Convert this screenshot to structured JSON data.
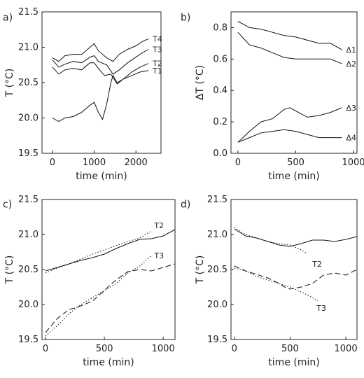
{
  "chart_data": [
    {
      "id": "a",
      "panel_label": "a)",
      "type": "line",
      "xlabel": "time (min)",
      "ylabel": "T (°C)",
      "xlim": [
        -250,
        2600
      ],
      "ylim": [
        19.5,
        21.5
      ],
      "xticks": [
        0,
        1000,
        2000
      ],
      "xtick_labels": [
        "0",
        "1000",
        "2000"
      ],
      "yticks": [
        19.5,
        20.0,
        20.5,
        21.0,
        21.5
      ],
      "ytick_labels": [
        "19.5",
        "20.0",
        "20.5",
        "21.0",
        "21.5"
      ],
      "series": [
        {
          "name": "T4",
          "style": "solid",
          "x": [
            0,
            150,
            300,
            500,
            700,
            900,
            1000,
            1100,
            1300,
            1450,
            1600,
            1800,
            2000,
            2150,
            2300
          ],
          "y": [
            20.85,
            20.8,
            20.88,
            20.9,
            20.9,
            21.0,
            21.05,
            20.95,
            20.85,
            20.8,
            20.9,
            20.97,
            21.02,
            21.08,
            21.12
          ]
        },
        {
          "name": "T3",
          "style": "solid",
          "x": [
            0,
            150,
            300,
            500,
            700,
            900,
            1000,
            1100,
            1300,
            1450,
            1600,
            1800,
            2000,
            2150,
            2300
          ],
          "y": [
            20.82,
            20.72,
            20.76,
            20.8,
            20.78,
            20.86,
            20.88,
            20.8,
            20.75,
            20.62,
            20.68,
            20.78,
            20.86,
            20.92,
            20.97
          ]
        },
        {
          "name": "T2",
          "style": "solid",
          "x": [
            0,
            150,
            300,
            500,
            700,
            900,
            1000,
            1100,
            1250,
            1400,
            1550,
            1700,
            1900,
            2100,
            2300
          ],
          "y": [
            20.72,
            20.62,
            20.68,
            20.7,
            20.68,
            20.78,
            20.78,
            20.7,
            20.6,
            20.62,
            20.48,
            20.55,
            20.65,
            20.72,
            20.77
          ]
        },
        {
          "name": "T1",
          "style": "solid",
          "x": [
            0,
            150,
            300,
            500,
            700,
            900,
            1000,
            1100,
            1200,
            1300,
            1400,
            1450,
            1550,
            1700,
            1900,
            2100,
            2300
          ],
          "y": [
            20.0,
            19.95,
            20.0,
            20.02,
            20.08,
            20.18,
            20.22,
            20.08,
            19.98,
            20.2,
            20.5,
            20.6,
            20.5,
            20.55,
            20.6,
            20.65,
            20.67
          ]
        }
      ]
    },
    {
      "id": "b",
      "panel_label": "b)",
      "type": "line",
      "xlabel": "time (min)",
      "ylabel": "ΔT (°C)",
      "xlim": [
        -60,
        1030
      ],
      "ylim": [
        0.0,
        0.9
      ],
      "xticks": [
        0,
        500,
        1000
      ],
      "xtick_labels": [
        "0",
        "500",
        "1000"
      ],
      "yticks": [
        0.0,
        0.2,
        0.4,
        0.6,
        0.8
      ],
      "ytick_labels": [
        "0.0",
        "0.2",
        "0.4",
        "0.6",
        "0.8"
      ],
      "series": [
        {
          "name": "Δ1",
          "style": "solid",
          "x": [
            0,
            100,
            200,
            300,
            400,
            500,
            600,
            700,
            800,
            900
          ],
          "y": [
            0.84,
            0.8,
            0.79,
            0.77,
            0.75,
            0.74,
            0.72,
            0.7,
            0.7,
            0.66
          ]
        },
        {
          "name": "Δ2",
          "style": "solid",
          "x": [
            0,
            100,
            200,
            300,
            400,
            500,
            600,
            700,
            800,
            900
          ],
          "y": [
            0.77,
            0.69,
            0.67,
            0.64,
            0.61,
            0.6,
            0.6,
            0.6,
            0.6,
            0.57
          ]
        },
        {
          "name": "Δ3",
          "style": "solid",
          "x": [
            0,
            100,
            200,
            300,
            400,
            450,
            500,
            600,
            700,
            800,
            900
          ],
          "y": [
            0.07,
            0.14,
            0.2,
            0.22,
            0.28,
            0.29,
            0.27,
            0.23,
            0.24,
            0.26,
            0.29
          ]
        },
        {
          "name": "Δ4",
          "style": "solid",
          "x": [
            0,
            100,
            200,
            300,
            400,
            500,
            600,
            700,
            800,
            900
          ],
          "y": [
            0.07,
            0.1,
            0.13,
            0.14,
            0.15,
            0.14,
            0.12,
            0.1,
            0.1,
            0.1
          ]
        }
      ]
    },
    {
      "id": "c",
      "panel_label": "c)",
      "type": "line",
      "xlabel": "time (min)",
      "ylabel": "T (°C)",
      "xlim": [
        -30,
        1100
      ],
      "ylim": [
        19.5,
        21.5
      ],
      "xticks": [
        0,
        500,
        1000
      ],
      "xtick_labels": [
        "0",
        "500",
        "1000"
      ],
      "yticks": [
        19.5,
        20.0,
        20.5,
        21.0,
        21.5
      ],
      "ytick_labels": [
        "19.5",
        "20.0",
        "20.5",
        "21.0",
        "21.5"
      ],
      "series": [
        {
          "name": "T2",
          "style": "solid",
          "x": [
            0,
            100,
            200,
            300,
            400,
            500,
            600,
            700,
            800,
            900,
            1000,
            1100
          ],
          "y": [
            20.48,
            20.53,
            20.58,
            20.63,
            20.67,
            20.72,
            20.8,
            20.87,
            20.93,
            20.94,
            20.98,
            21.07
          ]
        },
        {
          "name": "",
          "style": "dotted",
          "x": [
            0,
            100,
            200,
            300,
            400,
            500,
            600,
            700,
            800,
            900
          ],
          "y": [
            20.45,
            20.52,
            20.58,
            20.65,
            20.72,
            20.78,
            20.84,
            20.9,
            20.95,
            21.05
          ]
        },
        {
          "name": "T3",
          "style": "dashed",
          "x": [
            0,
            100,
            200,
            250,
            300,
            400,
            500,
            550,
            600,
            700,
            800,
            900,
            1000,
            1100
          ],
          "y": [
            19.6,
            19.8,
            19.93,
            19.95,
            19.98,
            20.05,
            20.2,
            20.28,
            20.35,
            20.47,
            20.5,
            20.48,
            20.53,
            20.58
          ]
        },
        {
          "name": "",
          "style": "dotted",
          "x": [
            0,
            100,
            200,
            300,
            400,
            500,
            600,
            700,
            800,
            900
          ],
          "y": [
            19.55,
            19.7,
            19.87,
            20.0,
            20.1,
            20.2,
            20.3,
            20.45,
            20.55,
            20.7
          ]
        }
      ]
    },
    {
      "id": "d",
      "panel_label": "d)",
      "type": "line",
      "xlabel": "time (min)",
      "ylabel": "T (°C)",
      "xlim": [
        -30,
        1100
      ],
      "ylim": [
        19.5,
        21.5
      ],
      "xticks": [
        0,
        500,
        1000
      ],
      "xtick_labels": [
        "0",
        "500",
        "1000"
      ],
      "yticks": [
        19.5,
        20.0,
        20.5,
        21.0,
        21.5
      ],
      "ytick_labels": [
        "19.5",
        "20.0",
        "20.5",
        "21.0",
        "21.5"
      ],
      "series": [
        {
          "name": "T2",
          "style": "solid",
          "x": [
            0,
            100,
            200,
            300,
            400,
            500,
            600,
            700,
            800,
            900,
            1000,
            1100
          ],
          "y": [
            21.08,
            20.98,
            20.95,
            20.9,
            20.85,
            20.83,
            20.87,
            20.92,
            20.92,
            20.9,
            20.93,
            20.97
          ]
        },
        {
          "name": "",
          "style": "dotted",
          "x": [
            0,
            100,
            200,
            300,
            400,
            500,
            600,
            650
          ],
          "y": [
            21.1,
            21.0,
            20.95,
            20.9,
            20.87,
            20.85,
            20.78,
            20.73
          ]
        },
        {
          "name": "",
          "style": "dashed",
          "x": [
            0,
            100,
            200,
            300,
            400,
            450,
            500,
            600,
            700,
            800,
            900,
            1000,
            1100
          ],
          "y": [
            20.55,
            20.48,
            20.43,
            20.38,
            20.3,
            20.25,
            20.22,
            20.25,
            20.3,
            20.42,
            20.45,
            20.42,
            20.5
          ]
        },
        {
          "name": "T3",
          "style": "dotted",
          "x": [
            0,
            100,
            200,
            300,
            400,
            500,
            600,
            700,
            750
          ],
          "y": [
            20.52,
            20.48,
            20.4,
            20.35,
            20.3,
            20.25,
            20.18,
            20.1,
            20.05
          ]
        }
      ]
    }
  ]
}
